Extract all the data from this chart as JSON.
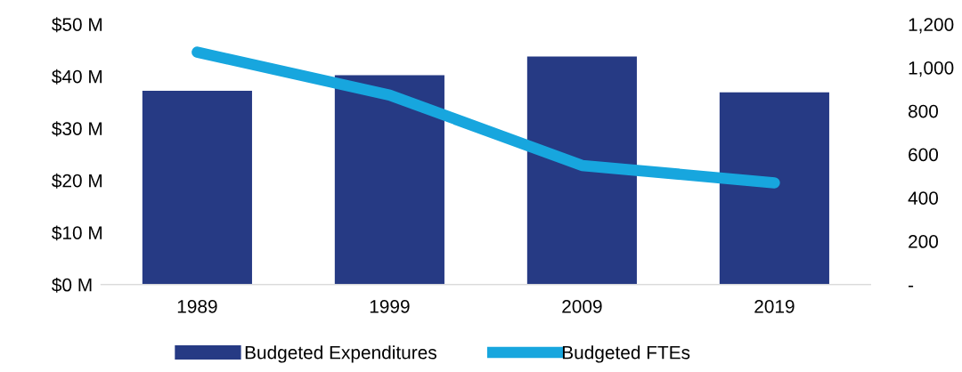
{
  "chart_data": {
    "type": "bar",
    "categories": [
      "1989",
      "1999",
      "2009",
      "2019"
    ],
    "series": [
      {
        "name": "Budgeted Expenditures",
        "color": "#263a84",
        "values": [
          37.2,
          40.2,
          43.8,
          36.9
        ]
      },
      {
        "name": "Budgeted FTEs",
        "color": "#17a6de",
        "type": "line",
        "axis": "y2",
        "values": [
          1071,
          873,
          549,
          469
        ]
      }
    ],
    "ylim": [
      0,
      50
    ],
    "yticks": [
      {
        "value": 0,
        "label": "$0 M"
      },
      {
        "value": 10,
        "label": "$10 M"
      },
      {
        "value": 20,
        "label": "$20 M"
      },
      {
        "value": 30,
        "label": "$30 M"
      },
      {
        "value": 40,
        "label": "$40 M"
      },
      {
        "value": 50,
        "label": "$50 M"
      }
    ],
    "y2lim": [
      0,
      1200
    ],
    "y2ticks": [
      {
        "value": 0,
        "label": "-"
      },
      {
        "value": 200,
        "label": "200"
      },
      {
        "value": 400,
        "label": "400"
      },
      {
        "value": 600,
        "label": "600"
      },
      {
        "value": 800,
        "label": "800"
      },
      {
        "value": 1000,
        "label": "1,000"
      },
      {
        "value": 1200,
        "label": "1,200"
      }
    ],
    "grid": false,
    "legend": "bottom"
  }
}
